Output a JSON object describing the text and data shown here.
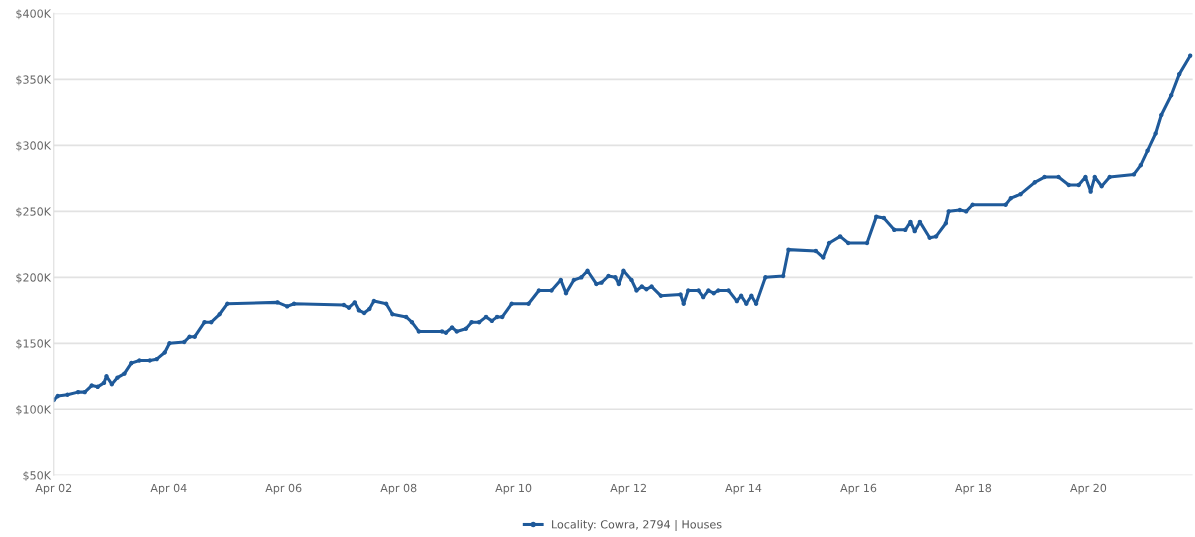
{
  "chart_data": {
    "type": "line",
    "marker": "circle",
    "grid": "y",
    "legend": "bottom",
    "xlim": [
      "2002-04-01",
      "2022-01-23"
    ],
    "xticks": [
      {
        "value": "2002-04-01",
        "label": "Apr 02"
      },
      {
        "value": "2004-04-01",
        "label": "Apr 04"
      },
      {
        "value": "2006-04-01",
        "label": "Apr 06"
      },
      {
        "value": "2008-04-01",
        "label": "Apr 08"
      },
      {
        "value": "2010-04-01",
        "label": "Apr 10"
      },
      {
        "value": "2012-04-01",
        "label": "Apr 12"
      },
      {
        "value": "2014-04-01",
        "label": "Apr 14"
      },
      {
        "value": "2016-04-01",
        "label": "Apr 16"
      },
      {
        "value": "2018-04-01",
        "label": "Apr 18"
      },
      {
        "value": "2020-04-01",
        "label": "Apr 20"
      }
    ],
    "ylim": [
      50,
      400
    ],
    "yticks": [
      {
        "value": 50,
        "label": "$50K"
      },
      {
        "value": 100,
        "label": "$100K"
      },
      {
        "value": 150,
        "label": "$150K"
      },
      {
        "value": 200,
        "label": "$200K"
      },
      {
        "value": 250,
        "label": "$250K"
      },
      {
        "value": 300,
        "label": "$300K"
      },
      {
        "value": 350,
        "label": "$350K"
      },
      {
        "value": 400,
        "label": "$400K"
      }
    ],
    "series": [
      {
        "name": "Locality: Cowra, 2794 | Houses",
        "color": "#1f5a9a",
        "x": [
          "2002-04-01",
          "2002-04-26",
          "2002-06-27",
          "2002-09-02",
          "2002-10-15",
          "2002-11-28",
          "2003-01-05",
          "2003-02-14",
          "2003-03-02",
          "2003-04-05",
          "2003-05-11",
          "2003-06-24",
          "2003-08-07",
          "2003-09-27",
          "2003-12-02",
          "2004-01-15",
          "2004-03-06",
          "2004-04-05",
          "2004-07-08",
          "2004-08-11",
          "2004-09-13",
          "2004-11-14",
          "2004-12-27",
          "2005-02-18",
          "2005-04-08",
          "2006-02-21",
          "2006-04-23",
          "2006-06-06",
          "2007-04-19",
          "2007-05-21",
          "2007-06-27",
          "2007-07-23",
          "2007-08-25",
          "2007-09-27",
          "2007-10-26",
          "2008-01-12",
          "2008-02-21",
          "2008-05-18",
          "2008-06-24",
          "2008-08-07",
          "2009-01-01",
          "2009-01-26",
          "2009-03-06",
          "2009-04-05",
          "2009-06-02",
          "2009-07-08",
          "2009-08-25",
          "2009-10-08",
          "2009-11-14",
          "2009-12-17",
          "2010-01-19",
          "2010-03-20",
          "2010-07-05",
          "2010-09-09",
          "2010-11-28",
          "2011-01-26",
          "2011-02-28",
          "2011-04-19",
          "2011-06-06",
          "2011-07-15",
          "2011-09-09",
          "2011-10-12",
          "2011-11-25",
          "2012-01-08",
          "2012-01-30",
          "2012-02-28",
          "2012-04-19",
          "2012-05-21",
          "2012-06-24",
          "2012-07-23",
          "2012-08-25",
          "2012-10-23",
          "2013-02-25",
          "2013-03-17",
          "2013-04-15",
          "2013-06-20",
          "2013-07-19",
          "2013-08-21",
          "2013-09-24",
          "2013-10-23",
          "2013-12-27",
          "2014-02-18",
          "2014-03-17",
          "2014-04-19",
          "2014-05-21",
          "2014-06-20",
          "2014-08-18",
          "2014-12-09",
          "2015-01-12",
          "2015-07-05",
          "2015-08-21",
          "2015-09-27",
          "2015-12-06",
          "2016-01-26",
          "2016-05-25",
          "2016-07-23",
          "2016-09-09",
          "2016-11-14",
          "2017-01-23",
          "2017-02-25",
          "2017-03-24",
          "2017-04-26",
          "2017-06-27",
          "2017-08-07",
          "2017-10-08",
          "2017-10-26",
          "2018-01-05",
          "2018-02-14",
          "2018-03-27",
          "2018-10-23",
          "2018-11-25",
          "2019-01-26",
          "2019-04-26",
          "2019-06-27",
          "2019-09-24",
          "2019-11-28",
          "2020-01-30",
          "2020-03-13",
          "2020-04-15",
          "2020-05-11",
          "2020-06-24",
          "2020-08-14",
          "2021-01-15",
          "2021-02-28",
          "2021-04-12",
          "2021-06-02",
          "2021-07-08",
          "2021-09-09",
          "2021-10-30",
          "2022-01-08"
        ],
        "values": [
          107,
          110,
          111,
          113,
          113,
          118,
          117,
          120,
          125,
          119,
          124,
          127,
          135,
          137,
          137,
          138,
          143,
          150,
          151,
          155,
          155,
          166,
          166,
          172,
          180,
          181,
          178,
          180,
          179,
          177,
          181,
          175,
          173,
          176,
          182,
          180,
          172,
          170,
          166,
          159,
          159,
          158,
          162,
          159,
          161,
          166,
          166,
          170,
          167,
          170,
          170,
          180,
          180,
          190,
          190,
          198,
          188,
          198,
          200,
          205,
          195,
          196,
          201,
          200,
          195,
          205,
          198,
          190,
          193,
          191,
          193,
          186,
          187,
          180,
          190,
          190,
          185,
          190,
          188,
          190,
          190,
          182,
          186,
          180,
          186,
          180,
          200,
          201,
          221,
          220,
          215,
          226,
          231,
          226,
          226,
          246,
          245,
          236,
          236,
          242,
          235,
          242,
          230,
          231,
          241,
          250,
          251,
          250,
          255,
          255,
          260,
          263,
          272,
          276,
          276,
          270,
          270,
          276,
          265,
          276,
          269,
          276,
          278,
          285,
          296,
          309,
          323,
          338,
          354,
          368
        ]
      }
    ]
  }
}
